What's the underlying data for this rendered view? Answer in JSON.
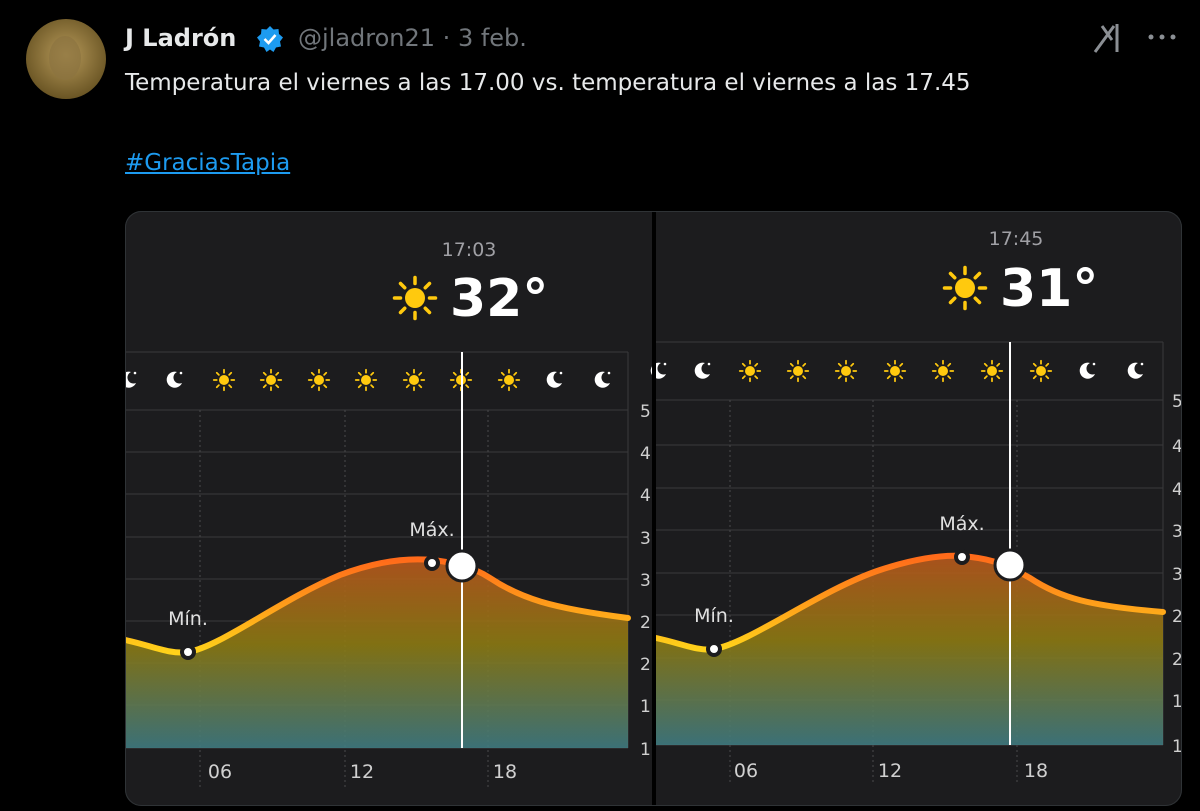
{
  "tweet": {
    "author": "J Ladrón",
    "handle_date": "@jladron21 · 3 feb.",
    "text": "Temperatura el viernes a las 17.00 vs. temperatura el viernes a las 17.45",
    "hashtag": "#GraciasTapia"
  },
  "images": [
    {
      "time": "17:03",
      "temperature": "32°",
      "min_label": "Mín.",
      "max_label": "Máx.",
      "x_labels": [
        "06",
        "12",
        "18"
      ],
      "y_labels": [
        "5",
        "4",
        "4",
        "3",
        "3",
        "2",
        "2",
        "1",
        "1"
      ]
    },
    {
      "time": "17:45",
      "temperature": "31°",
      "min_label": "Mín.",
      "max_label": "Máx.",
      "x_labels": [
        "06",
        "12",
        "18"
      ],
      "y_labels": [
        "5",
        "4",
        "4",
        "3",
        "3",
        "2",
        "2",
        "1",
        "1"
      ]
    }
  ]
}
